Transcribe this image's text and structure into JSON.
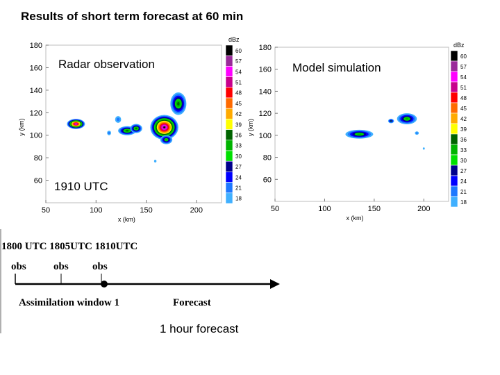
{
  "title": "Results of short term forecast at 60 min",
  "colorbar": {
    "unit": "dBz",
    "levels": [
      "60",
      "57",
      "54",
      "51",
      "48",
      "45",
      "42",
      "39",
      "36",
      "33",
      "30",
      "27",
      "24",
      "21",
      "18"
    ],
    "colors": [
      "#000000",
      "#9a2a9a",
      "#ff00ff",
      "#c8008c",
      "#ff0000",
      "#ff6a00",
      "#ffaa00",
      "#ffff00",
      "#006400",
      "#00b400",
      "#00e000",
      "#00008c",
      "#0000ff",
      "#1e78ff",
      "#40b0ff"
    ]
  },
  "chart_data": [
    {
      "type": "heatmap",
      "name": "radar",
      "panel_label": "Radar observation",
      "time_label": "1910 UTC",
      "xlabel": "x (km)",
      "ylabel": "y (km)",
      "xlim": [
        50,
        225
      ],
      "ylim": [
        40,
        180
      ],
      "xticks": [
        "50",
        "100",
        "150",
        "200"
      ],
      "yticks": [
        "60",
        "80",
        "100",
        "120",
        "140",
        "160",
        "180"
      ],
      "cells": [
        {
          "x": 80,
          "y": 110,
          "rx": 9,
          "ry": 4.5,
          "max_dbz": 57
        },
        {
          "x": 131,
          "y": 104,
          "rx": 9,
          "ry": 4,
          "max_dbz": 36
        },
        {
          "x": 140,
          "y": 106,
          "rx": 6,
          "ry": 4,
          "max_dbz": 36
        },
        {
          "x": 168,
          "y": 107,
          "rx": 14,
          "ry": 11,
          "max_dbz": 60
        },
        {
          "x": 182,
          "y": 128,
          "rx": 8,
          "ry": 10,
          "max_dbz": 36
        },
        {
          "x": 170,
          "y": 96,
          "rx": 6,
          "ry": 4,
          "max_dbz": 33
        },
        {
          "x": 122,
          "y": 114,
          "rx": 3,
          "ry": 3,
          "max_dbz": 21
        },
        {
          "x": 113,
          "y": 102,
          "rx": 2,
          "ry": 2,
          "max_dbz": 21
        },
        {
          "x": 159,
          "y": 77,
          "rx": 1.2,
          "ry": 1.2,
          "max_dbz": 18
        }
      ]
    },
    {
      "type": "heatmap",
      "name": "model",
      "panel_label": "Model simulation",
      "xlabel": "x (km)",
      "ylabel": "y (km)",
      "xlim": [
        50,
        225
      ],
      "ylim": [
        40,
        180
      ],
      "xticks": [
        "50",
        "100",
        "150",
        "200"
      ],
      "yticks": [
        "60",
        "80",
        "100",
        "120",
        "140",
        "160",
        "180"
      ],
      "cells": [
        {
          "x": 135,
          "y": 101,
          "rx": 14,
          "ry": 4,
          "max_dbz": 33
        },
        {
          "x": 183,
          "y": 115,
          "rx": 10,
          "ry": 5,
          "max_dbz": 33
        },
        {
          "x": 167,
          "y": 113,
          "rx": 3,
          "ry": 2,
          "max_dbz": 30
        },
        {
          "x": 193,
          "y": 102,
          "rx": 2,
          "ry": 1.5,
          "max_dbz": 21
        },
        {
          "x": 200,
          "y": 88,
          "rx": 1,
          "ry": 1,
          "max_dbz": 18
        }
      ]
    }
  ],
  "timeline": {
    "times": "1800 UTC 1805UTC 1810UTC",
    "obs": [
      "obs",
      "obs",
      "obs"
    ],
    "assim": "Assimilation window 1",
    "forecast": "Forecast",
    "hour": "1 hour forecast"
  }
}
